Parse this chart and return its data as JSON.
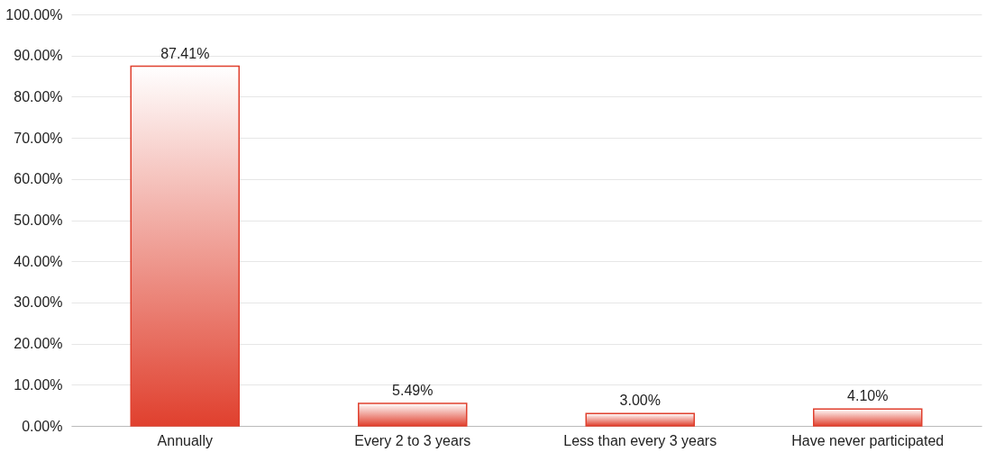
{
  "chart_data": {
    "type": "bar",
    "categories": [
      "Annually",
      "Every 2 to 3 years",
      "Less than every 3 years",
      "Have never participated"
    ],
    "values": [
      87.41,
      5.49,
      3.0,
      4.1
    ],
    "value_labels": [
      "87.41%",
      "5.49%",
      "3.00%",
      "4.10%"
    ],
    "color": "#e0402e",
    "ylim": [
      0,
      100
    ],
    "yticks": [
      {
        "value": 0,
        "label": "0.00%"
      },
      {
        "value": 10,
        "label": "10.00%"
      },
      {
        "value": 20,
        "label": "20.00%"
      },
      {
        "value": 30,
        "label": "30.00%"
      },
      {
        "value": 40,
        "label": "40.00%"
      },
      {
        "value": 50,
        "label": "50.00%"
      },
      {
        "value": 60,
        "label": "60.00%"
      },
      {
        "value": 70,
        "label": "70.00%"
      },
      {
        "value": 80,
        "label": "80.00%"
      },
      {
        "value": 90,
        "label": "90.00%"
      },
      {
        "value": 100,
        "label": "100.00%"
      }
    ],
    "grid": "y"
  }
}
